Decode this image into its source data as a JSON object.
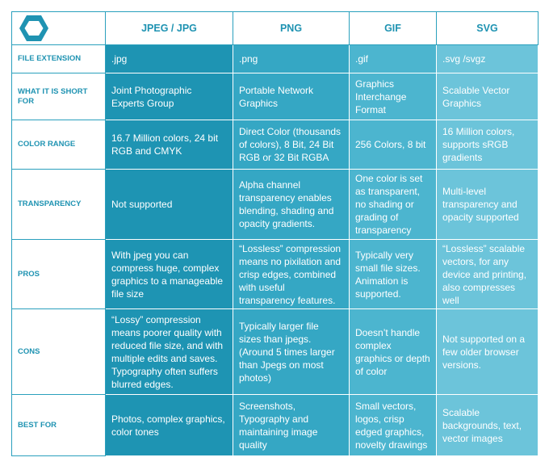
{
  "header": {
    "logo_icon": "hexagon-logo-icon",
    "columns": [
      "JPEG / JPG",
      "PNG",
      "GIF",
      "SVG"
    ]
  },
  "rows": [
    {
      "label": "FILE EXTENSION",
      "cells": [
        ".jpg",
        ".png",
        ".gif",
        ".svg /svgz"
      ]
    },
    {
      "label": "WHAT IT IS SHORT FOR",
      "cells": [
        "Joint Photographic Experts Group",
        "Portable Network Graphics",
        "Graphics Interchange Format",
        "Scalable Vector Graphics"
      ]
    },
    {
      "label": "COLOR RANGE",
      "cells": [
        "16.7 Million colors, 24 bit RGB and CMYK",
        "Direct Color (thousands of colors), 8 Bit, 24 Bit RGB or 32 Bit RGBA",
        "256 Colors, 8 bit",
        "16 Million colors, supports sRGB gradients"
      ]
    },
    {
      "label": "TRANSPARENCY",
      "cells": [
        "Not supported",
        "Alpha channel transparency enables blending, shading and opacity gradients.",
        "One color is set as transparent, no shading or grading of transparency",
        "Multi-level transparency and opacity supported"
      ]
    },
    {
      "label": "PROS",
      "cells": [
        "With jpeg you can compress huge, complex graphics to a manageable file size",
        "“Lossless” compression means no pixilation and crisp edges, combined with useful transparency features.",
        "Typically very small file sizes. Animation is supported.",
        "“Lossless” scalable vectors, for any device and printing, also compresses well"
      ]
    },
    {
      "label": "CONS",
      "cells": [
        "“Lossy” compression means poorer quality with reduced file size, and with multiple edits and saves. Typography often suffers blurred edges.",
        "Typically larger file sizes than jpegs. (Around 5 times larger than Jpegs on most photos)",
        "Doesn’t handle complex graphics or depth of color",
        "Not supported on a few older browser versions."
      ]
    },
    {
      "label": "BEST FOR",
      "cells": [
        "Photos, complex graphics, color tones",
        "Screenshots, Typography and maintaining image quality",
        "Small vectors, logos, crisp edged graphics, novelty drawings",
        "Scalable backgrounds, text, vector images"
      ]
    }
  ],
  "colors": {
    "accent": "#1f93b2",
    "col1": "#1e94b3",
    "col2": "#35a7c4",
    "col3": "#4cb5cf",
    "col4": "#6cc4da"
  }
}
